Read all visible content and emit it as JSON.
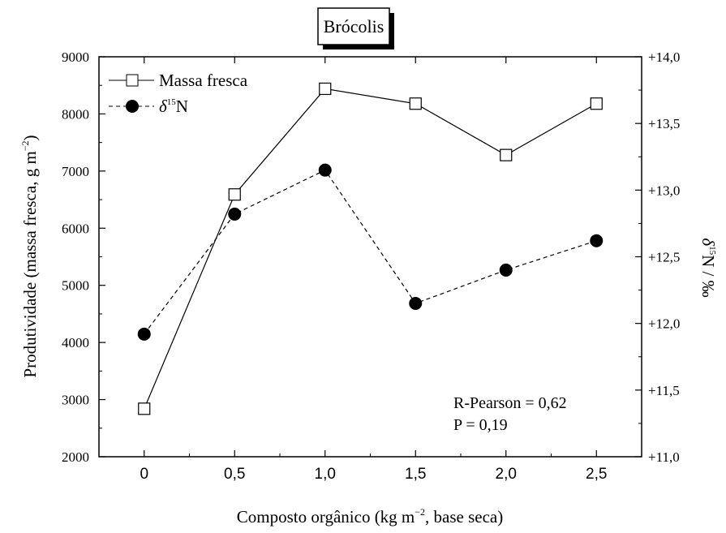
{
  "chart_data": {
    "type": "line",
    "title": "Brócolis",
    "xlabel_pre": "Composto orgânico (kg m",
    "xlabel_exp": "−2",
    "xlabel_post": ", base seca)",
    "ylabel_left_pre": "Produtividade (massa fresca, g m",
    "ylabel_left_exp": "−2",
    "ylabel_left_post": ")",
    "ylabel_right_delta": "δ",
    "ylabel_right_sup": "15",
    "ylabel_right_post": "N / ‰",
    "x_values": [
      0,
      0.5,
      1.0,
      1.5,
      2.0,
      2.5
    ],
    "x_tick_labels": [
      "0",
      "0,5",
      "1,0",
      "1,5",
      "2,0",
      "2,5"
    ],
    "xlim": [
      -0.25,
      2.75
    ],
    "y_left_lim": [
      2000,
      9000
    ],
    "y_left_ticks": [
      "2000",
      "3000",
      "4000",
      "5000",
      "6000",
      "7000",
      "8000",
      "9000"
    ],
    "y_right_lim": [
      11.0,
      14.0
    ],
    "y_right_ticks": [
      "+11,0",
      "+11,5",
      "+12,0",
      "+12,5",
      "+13,0",
      "+13,5",
      "+14,0"
    ],
    "series": [
      {
        "name": "Massa fresca",
        "axis": "left",
        "marker": "open-square",
        "line": "solid",
        "values": [
          2840,
          6590,
          8440,
          8180,
          7280,
          8180
        ]
      },
      {
        "name_delta": "δ",
        "name_sup": "15",
        "name_post": "N",
        "axis": "right",
        "marker": "filled-circle",
        "line": "dashed",
        "values": [
          11.92,
          12.82,
          13.15,
          12.15,
          12.4,
          12.62
        ]
      }
    ],
    "annotation": {
      "line1": "R-Pearson = 0,62",
      "line2": "P = 0,19"
    },
    "legend_position": "top-left",
    "grid": false
  }
}
